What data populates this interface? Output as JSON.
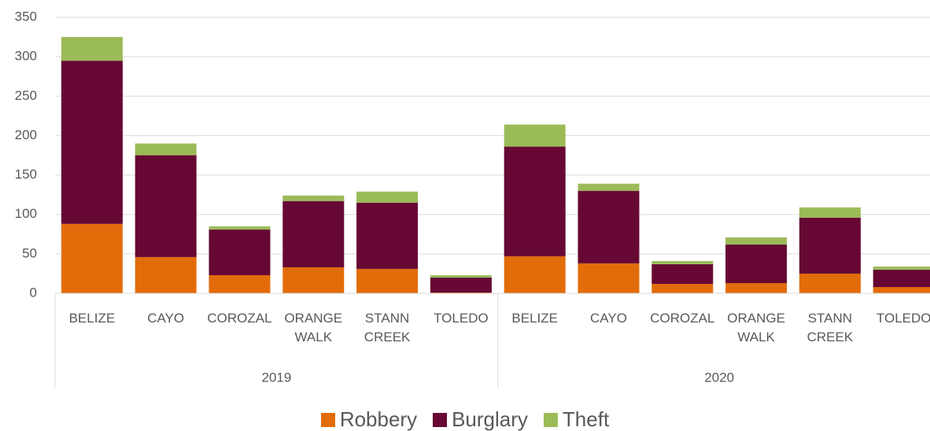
{
  "chart_data": {
    "type": "stacked_bar",
    "categories": [
      "BELIZE",
      "CAYO",
      "COROZAL",
      "ORANGE WALK",
      "STANN CREEK",
      "TOLEDO",
      "BELIZE",
      "CAYO",
      "COROZAL",
      "ORANGE WALK",
      "STANN CREEK",
      "TOLEDO"
    ],
    "category_groups": [
      "2019",
      "2020"
    ],
    "series": [
      {
        "name": "Robbery",
        "color": "#e36c0a",
        "values": [
          88,
          46,
          23,
          33,
          31,
          1,
          47,
          38,
          12,
          13,
          25,
          8
        ]
      },
      {
        "name": "Burglary",
        "color": "#660833",
        "values": [
          207,
          129,
          58,
          84,
          84,
          19,
          139,
          92,
          25,
          49,
          71,
          22
        ]
      },
      {
        "name": "Theft",
        "color": "#9bbb59",
        "values": [
          30,
          15,
          4,
          7,
          14,
          3,
          28,
          9,
          4,
          9,
          13,
          4
        ]
      }
    ],
    "ylim": [
      0,
      350
    ],
    "yticks": [
      0,
      50,
      100,
      150,
      200,
      250,
      300,
      350
    ],
    "grid": true,
    "legend": "bottom"
  }
}
